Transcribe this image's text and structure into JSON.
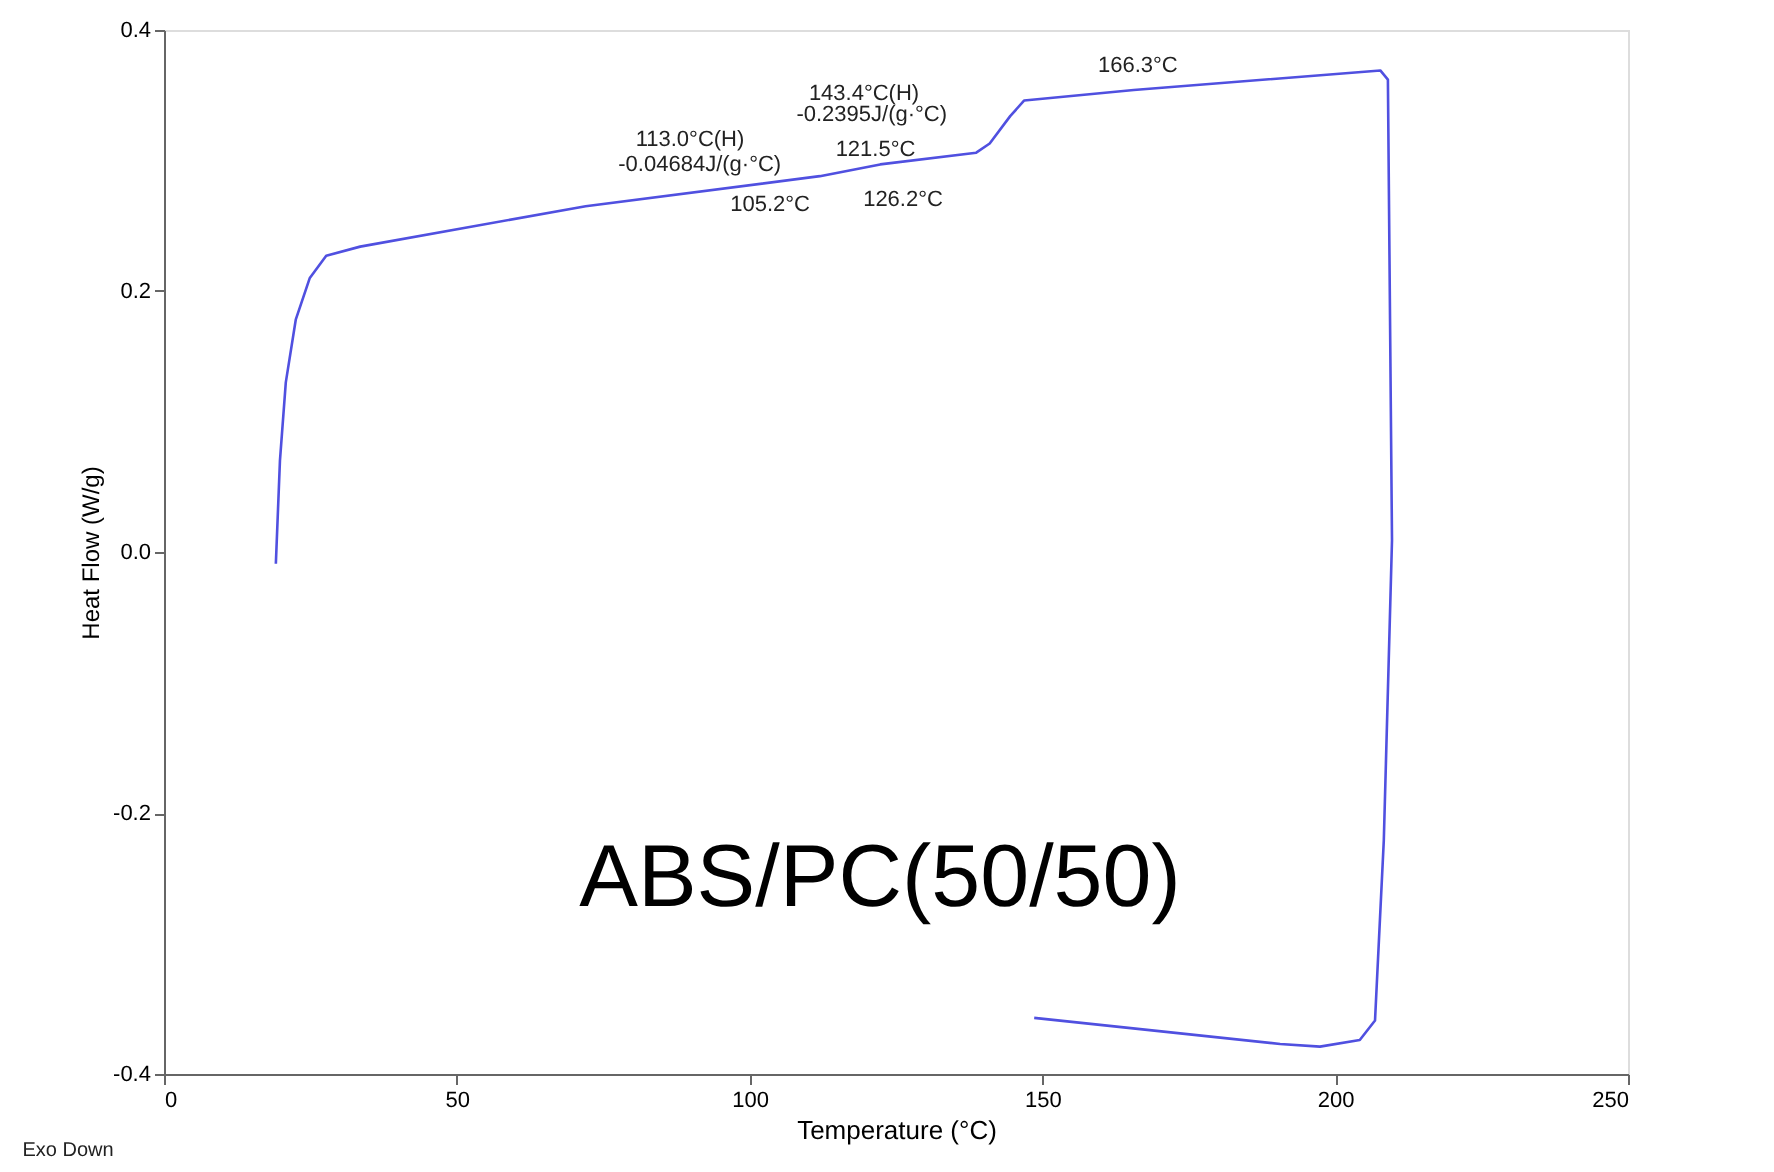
{
  "chart_data": {
    "type": "line",
    "xlabel": "Temperature (°C)",
    "ylabel": "Heat Flow (W/g)",
    "x": [
      19.1,
      19.8,
      20.8,
      22.5,
      24.9,
      27.7,
      33.5,
      72,
      112,
      122.3,
      138.7,
      141,
      144.5,
      146.9,
      165.6,
      207.7,
      209,
      209.7,
      208.3,
      206.8,
      204.2,
      197.4,
      190.6,
      148.6
    ],
    "series": [
      {
        "color": "#5050e0",
        "values": [
          -0.009,
          0.07,
          0.13,
          0.178,
          0.21,
          0.227,
          0.234,
          0.265,
          0.288,
          0.297,
          0.306,
          0.313,
          0.334,
          0.346,
          0.354,
          0.369,
          0.362,
          0.009,
          -0.221,
          -0.359,
          -0.374,
          -0.379,
          -0.377,
          -0.357
        ]
      }
    ],
    "xlim": [
      0,
      250
    ],
    "xticks": [
      0,
      50,
      100,
      150,
      200,
      250
    ],
    "ylim": [
      -0.4,
      0.4
    ],
    "yticks": [
      -0.4,
      -0.2,
      {
        "value": 0,
        "label": "0.0"
      },
      0.2,
      0.4
    ],
    "grid": false,
    "marker": "none",
    "line_style": "solid",
    "annotations": [
      "113.0°C(H)",
      {
        "text": "-0.04684J/(g·°C)",
        "x": 113.0,
        "y": 0.286
      },
      {
        "text": "105.2°C",
        "x": 105.2,
        "y": 0.28
      },
      {
        "text": "121.5°C",
        "x": 121.5,
        "y": 0.296
      },
      {
        "text": "126.2°C",
        "x": 126.2,
        "y": 0.299
      },
      "143.4°C(H)",
      {
        "text": "-0.2395J/(g·°C)",
        "x": 143.4,
        "y": 0.33
      },
      {
        "text": "166.3°C",
        "x": 166.3,
        "y": 0.354
      },
      "ABS/PC(50/50)",
      "Exo Down"
    ]
  }
}
